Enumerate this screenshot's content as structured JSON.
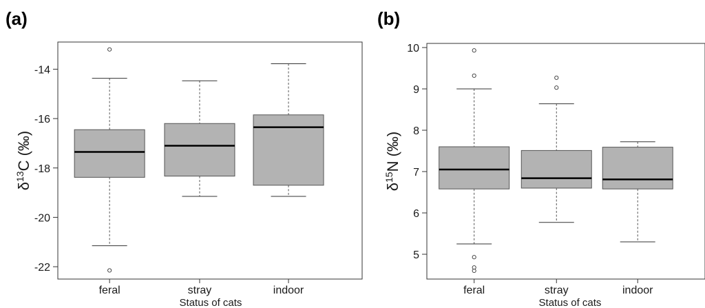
{
  "chart_data": [
    {
      "type": "box",
      "panel_label": "(a)",
      "title": "",
      "xlabel": "Status of cats",
      "ylabel_main": "δ",
      "ylabel_sup": "13",
      "ylabel_rest": "C (‰)",
      "ylim": [
        -22.5,
        -12.9
      ],
      "yticks": [
        -22,
        -20,
        -18,
        -16,
        -14
      ],
      "ytick_labels": [
        "-22",
        "-20",
        "-18",
        "-16",
        "-14"
      ],
      "categories": [
        "feral",
        "stray",
        "indoor"
      ],
      "boxes": [
        {
          "whisker_low": -21.15,
          "q1": -18.38,
          "median": -17.35,
          "q3": -16.45,
          "whisker_high": -14.37,
          "outliers": [
            -13.2,
            -22.15
          ]
        },
        {
          "whisker_low": -19.15,
          "q1": -18.33,
          "median": -17.1,
          "q3": -16.2,
          "whisker_high": -14.47,
          "outliers": []
        },
        {
          "whisker_low": -19.15,
          "q1": -18.7,
          "median": -16.35,
          "q3": -15.85,
          "whisker_high": -13.78,
          "outliers": []
        }
      ],
      "grid": false
    },
    {
      "type": "box",
      "panel_label": "(b)",
      "title": "",
      "xlabel": "Status of cats",
      "ylabel_main": "δ",
      "ylabel_sup": "15",
      "ylabel_rest": "N (‰)",
      "ylim": [
        4.4,
        10.1
      ],
      "yticks": [
        5,
        6,
        7,
        8,
        9,
        10
      ],
      "ytick_labels": [
        "5",
        "6",
        "7",
        "8",
        "9",
        "10"
      ],
      "categories": [
        "feral",
        "stray",
        "indoor"
      ],
      "boxes": [
        {
          "whisker_low": 5.25,
          "q1": 6.58,
          "median": 7.05,
          "q3": 7.6,
          "whisker_high": 9.0,
          "outliers": [
            9.93,
            9.32,
            4.93,
            4.68,
            4.6
          ]
        },
        {
          "whisker_low": 5.77,
          "q1": 6.6,
          "median": 6.84,
          "q3": 7.51,
          "whisker_high": 8.64,
          "outliers": [
            9.27,
            9.03
          ]
        },
        {
          "whisker_low": 5.3,
          "q1": 6.58,
          "median": 6.81,
          "q3": 7.59,
          "whisker_high": 7.72,
          "outliers": []
        }
      ],
      "grid": false
    }
  ]
}
